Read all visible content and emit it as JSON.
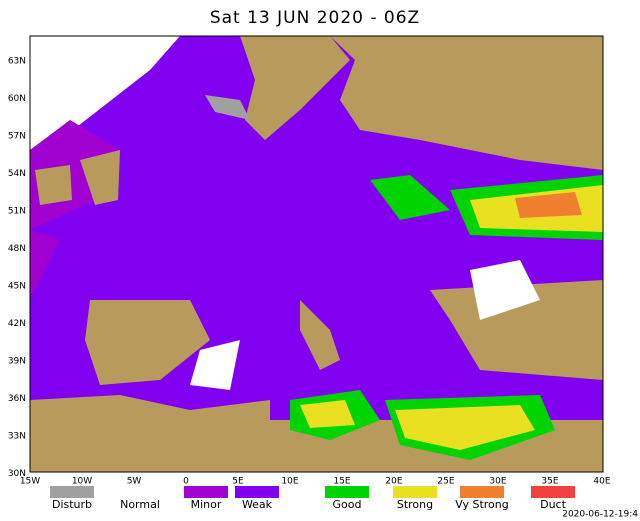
{
  "title": "Sat 13 JUN 2020 - 06Z",
  "map": {
    "lat_labels": [
      "63N",
      "60N",
      "57N",
      "54N",
      "51N",
      "48N",
      "45N",
      "42N",
      "39N",
      "36N",
      "33N",
      "30N"
    ],
    "lon_labels": [
      "15W",
      "10W",
      "5W",
      "0",
      "5E",
      "10E",
      "15E",
      "20E",
      "25E",
      "30E",
      "35E",
      "40E"
    ]
  },
  "legend": [
    {
      "label": "Disturb",
      "color": "#a0a0a0"
    },
    {
      "label": "Normal",
      "color": "#ffffff"
    },
    {
      "label": "Minor",
      "color": "#a000d0"
    },
    {
      "label": "Weak",
      "color": "#8200f0"
    },
    {
      "label": "Good",
      "color": "#00d400"
    },
    {
      "label": "Strong",
      "color": "#e8e020"
    },
    {
      "label": "Vy Strong",
      "color": "#f08030"
    },
    {
      "label": "Duct",
      "color": "#f04040"
    }
  ],
  "timestamp": "2020-06-12-19:4"
}
